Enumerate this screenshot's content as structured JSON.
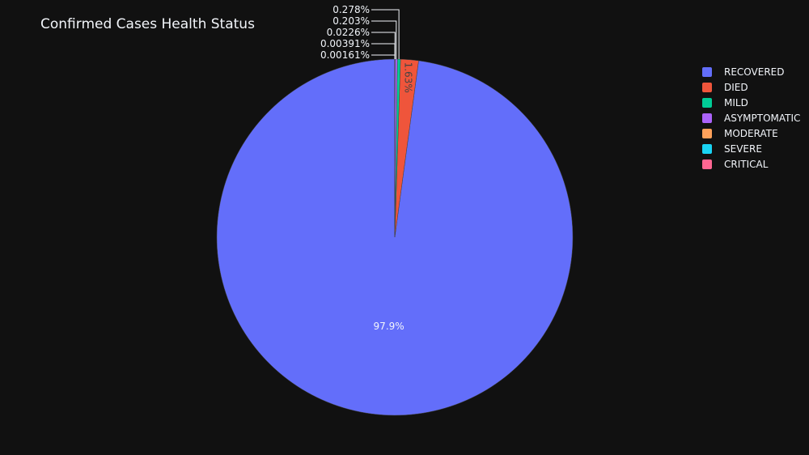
{
  "chart_data": {
    "type": "pie",
    "title": "Confirmed Cases Health Status",
    "categories": [
      "RECOVERED",
      "DIED",
      "MILD",
      "ASYMPTOMATIC",
      "MODERATE",
      "SEVERE",
      "CRITICAL"
    ],
    "values": [
      97.9,
      1.63,
      0.278,
      0.203,
      0.0226,
      0.00391,
      0.00161
    ],
    "percent_labels": [
      "97.9%",
      "1.63%",
      "0.278%",
      "0.203%",
      "0.0226%",
      "0.00391%",
      "0.00161%"
    ],
    "colors": [
      "#636efa",
      "#EF553B",
      "#00cc96",
      "#ab63fa",
      "#FFA15A",
      "#19d3f3",
      "#FF6692"
    ],
    "legend_placement": "right",
    "direction": "counterclockwise",
    "start_angle": "top"
  },
  "colors": {
    "background": "#111111",
    "text": "#f2f5fa"
  }
}
